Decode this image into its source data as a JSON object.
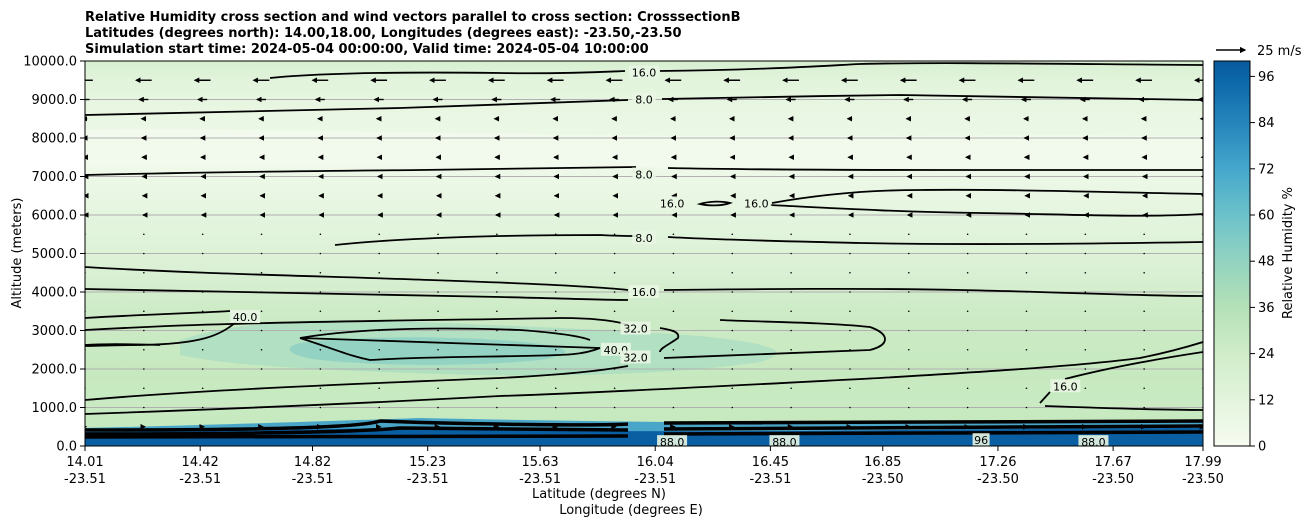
{
  "chart_data": {
    "type": "contour",
    "title_lines": [
      "Relative Humidity cross section and wind vectors parallel to cross section: CrosssectionB",
      "Latitudes (degrees north): 14.00,18.00, Longitudes (degrees east): -23.50,-23.50",
      "Simulation start time: 2024-05-04 00:00:00, Valid time: 2024-05-04 10:00:00"
    ],
    "ylabel": "Altitude (meters)",
    "xlabel_lat": "Latitude (degrees N)",
    "xlabel_lon": "Longitude (degrees E)",
    "ylim": [
      0,
      10000
    ],
    "y_ticks": [
      "0.0",
      "1000.0",
      "2000.0",
      "3000.0",
      "4000.0",
      "5000.0",
      "6000.0",
      "7000.0",
      "8000.0",
      "9000.0",
      "10000.0"
    ],
    "x_ticks": [
      {
        "lat": "14.01",
        "lon": "-23.51"
      },
      {
        "lat": "14.42",
        "lon": "-23.51"
      },
      {
        "lat": "14.82",
        "lon": "-23.51"
      },
      {
        "lat": "15.23",
        "lon": "-23.51"
      },
      {
        "lat": "15.63",
        "lon": "-23.51"
      },
      {
        "lat": "16.04",
        "lon": "-23.51"
      },
      {
        "lat": "16.45",
        "lon": "-23.51"
      },
      {
        "lat": "16.85",
        "lon": "-23.50"
      },
      {
        "lat": "17.26",
        "lon": "-23.50"
      },
      {
        "lat": "17.67",
        "lon": "-23.50"
      },
      {
        "lat": "17.99",
        "lon": "-23.50"
      }
    ],
    "colorbar": {
      "label": "Relative Humidity %",
      "ticks": [
        "0",
        "12",
        "24",
        "36",
        "48",
        "60",
        "72",
        "84",
        "96"
      ],
      "range": [
        0,
        100
      ],
      "colormap": "GnBu"
    },
    "quiver_key": "25 m/s",
    "contour_levels_labeled": [
      "8.0",
      "16.0",
      "32.0",
      "40.0",
      "88.0",
      "96"
    ],
    "contour_labels": [
      {
        "text": "16.0",
        "lat": 16.0,
        "alt": 9700
      },
      {
        "text": "8.0",
        "lat": 16.0,
        "alt": 9000
      },
      {
        "text": "8.0",
        "lat": 16.0,
        "alt": 7050
      },
      {
        "text": "16.0",
        "lat": 16.1,
        "alt": 6300
      },
      {
        "text": "16.0",
        "lat": 16.4,
        "alt": 6300
      },
      {
        "text": "8.0",
        "lat": 16.0,
        "alt": 5400
      },
      {
        "text": "16.0",
        "lat": 16.0,
        "alt": 4000
      },
      {
        "text": "32.0",
        "lat": 15.97,
        "alt": 3050
      },
      {
        "text": "40.0",
        "lat": 14.58,
        "alt": 3350
      },
      {
        "text": "40.0",
        "lat": 15.9,
        "alt": 2500
      },
      {
        "text": "32.0",
        "lat": 15.97,
        "alt": 2300
      },
      {
        "text": "16.0",
        "lat": 17.5,
        "alt": 1550
      },
      {
        "text": "88.0",
        "lat": 16.1,
        "alt": 100
      },
      {
        "text": "88.0",
        "lat": 16.5,
        "alt": 100
      },
      {
        "text": "88.0",
        "lat": 17.6,
        "alt": 100
      },
      {
        "text": "96",
        "lat": 17.2,
        "alt": 150
      }
    ],
    "rh_field_summary": [
      {
        "alt": 0,
        "rh": 95
      },
      {
        "alt": 300,
        "rh": 60
      },
      {
        "alt": 1000,
        "rh": 30
      },
      {
        "alt": 2500,
        "rh": 35
      },
      {
        "alt": 4000,
        "rh": 18
      },
      {
        "alt": 6000,
        "rh": 12
      },
      {
        "alt": 8000,
        "rh": 6
      },
      {
        "alt": 9500,
        "rh": 12
      }
    ],
    "wind_summary": [
      {
        "alt": 9500,
        "u": -14
      },
      {
        "alt": 9000,
        "u": -8
      },
      {
        "alt": 8500,
        "u": -4
      },
      {
        "alt": 7000,
        "u": -2
      },
      {
        "alt": 5000,
        "u": -1
      },
      {
        "alt": 3000,
        "u": -1
      },
      {
        "alt": 1500,
        "u": 0
      },
      {
        "alt": 500,
        "u": 2
      }
    ]
  }
}
